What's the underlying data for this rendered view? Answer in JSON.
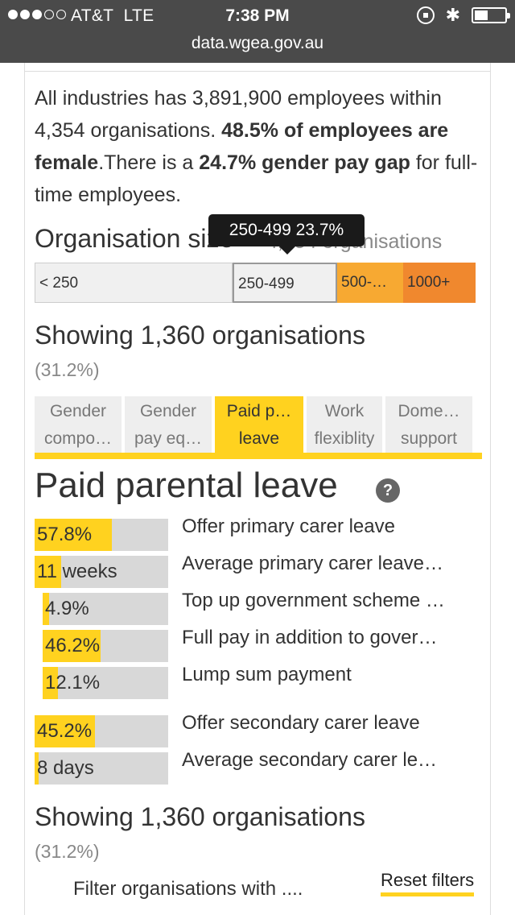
{
  "status_bar": {
    "carrier": "AT&T",
    "network": "LTE",
    "time": "7:38 PM"
  },
  "browser": {
    "url": "data.wgea.gov.au"
  },
  "summary": {
    "part1": "All industries has 3,891,900 employees within 4,354 organisations. ",
    "bold1": "48.5% of employees are female",
    "part2": ".There is a ",
    "bold2": "24.7% gender pay gap",
    "part3": " for full-time employees."
  },
  "org_size": {
    "title": "Organisation size",
    "count": "4,354 organisations",
    "tooltip": "250-499 23.7%",
    "segments": [
      "< 250",
      "250-499",
      "500-…",
      "1000+"
    ],
    "colors": {
      "inactive": "#f0f0f0",
      "seg_500": "#f7a932",
      "seg_1000": "#f0882e"
    }
  },
  "showing_top": {
    "text": "Showing 1,360 organisations",
    "pct": "(31.2%)"
  },
  "tabs": [
    {
      "line1": "Gender",
      "line2": "compo…",
      "active": false
    },
    {
      "line1": "Gender",
      "line2": "pay eq…",
      "active": false
    },
    {
      "line1": "Paid p…",
      "line2": "leave",
      "active": true
    },
    {
      "line1": "Work",
      "line2": "flexiblity",
      "active": false
    },
    {
      "line1": "Dome…",
      "line2": "support",
      "active": false
    }
  ],
  "section": {
    "title": "Paid parental leave",
    "help": "?"
  },
  "accent_color": "#ffd21f",
  "metrics": [
    {
      "value": "57.8%",
      "fraction": 0.578,
      "label": "Offer primary carer leave"
    },
    {
      "value": "11 weeks",
      "fraction": 0.2,
      "label": "Average primary carer leave…"
    },
    {
      "value": "4.9%",
      "fraction": 0.049,
      "label": "Top up government scheme …"
    },
    {
      "value": "46.2%",
      "fraction": 0.462,
      "label": "Full pay in addition to gover…"
    },
    {
      "value": "12.1%",
      "fraction": 0.121,
      "label": "Lump sum payment"
    },
    {
      "value": "45.2%",
      "fraction": 0.452,
      "label": "Offer secondary carer leave"
    },
    {
      "value": "8 days",
      "fraction": 0.03,
      "label": "Average secondary carer le…"
    }
  ],
  "showing_bottom": {
    "text": "Showing 1,360 organisations",
    "pct": "(31.2%)"
  },
  "footer": {
    "filter_text": "Filter organisations with ....",
    "reset": "Reset filters"
  }
}
